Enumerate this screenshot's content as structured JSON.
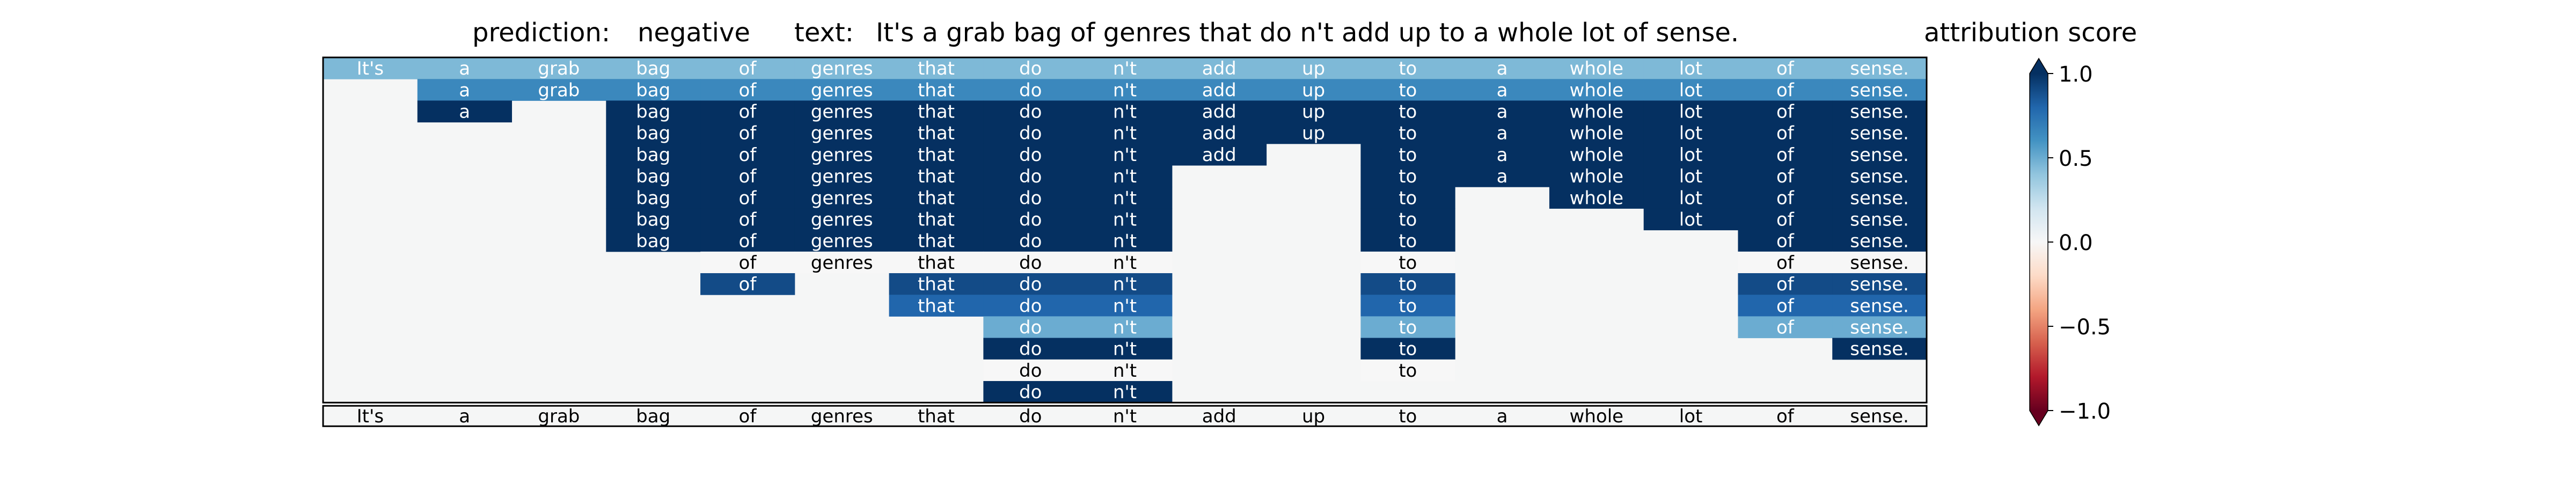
{
  "header": {
    "prediction_label": "prediction:",
    "prediction_value": "negative",
    "text_label": "text:",
    "text_value": "It's a grab bag of genres that do n't add up to a whole lot of sense."
  },
  "colorbar": {
    "title": "attribution score",
    "ticks": [
      "1.0",
      "0.5",
      "0.0",
      "−0.5",
      "−1.0"
    ],
    "tick_values": [
      1.0,
      0.5,
      0.0,
      -0.5,
      -1.0
    ],
    "range": [
      -1.0,
      1.0
    ],
    "colormap": "RdBu"
  },
  "chart_data": {
    "type": "heatmap",
    "tokens": [
      "It's",
      "a",
      "grab",
      "bag",
      "of",
      "genres",
      "that",
      "do",
      "n't",
      "add",
      "up",
      "to",
      "a",
      "whole",
      "lot",
      "of",
      "sense."
    ],
    "rows": [
      {
        "present": [
          0,
          1,
          2,
          3,
          4,
          5,
          6,
          7,
          8,
          9,
          10,
          11,
          12,
          13,
          14,
          15,
          16
        ],
        "scores": {
          "0": 0.45,
          "1": 0.45,
          "2": 0.45,
          "3": 0.45,
          "4": 0.45,
          "5": 0.45,
          "6": 0.45,
          "7": 0.45,
          "8": 0.45,
          "9": 0.45,
          "10": 0.45,
          "11": 0.45,
          "12": 0.45,
          "13": 0.45,
          "14": 0.45,
          "15": 0.45,
          "16": 0.45
        }
      },
      {
        "present": [
          1,
          2,
          3,
          4,
          5,
          6,
          7,
          8,
          9,
          10,
          11,
          12,
          13,
          14,
          15,
          16
        ],
        "scores": {
          "1": 0.65,
          "2": 0.65,
          "3": 0.65,
          "4": 0.65,
          "5": 0.65,
          "6": 0.65,
          "7": 0.65,
          "8": 0.65,
          "9": 0.65,
          "10": 0.65,
          "11": 0.65,
          "12": 0.65,
          "13": 0.65,
          "14": 0.65,
          "15": 0.65,
          "16": 0.65
        }
      },
      {
        "present": [
          1,
          3,
          4,
          5,
          6,
          7,
          8,
          9,
          10,
          11,
          12,
          13,
          14,
          15,
          16
        ],
        "scores": {
          "1": 1.0,
          "3": 1.0,
          "4": 1.0,
          "5": 1.0,
          "6": 1.0,
          "7": 1.0,
          "8": 1.0,
          "9": 1.0,
          "10": 1.0,
          "11": 1.0,
          "12": 1.0,
          "13": 1.0,
          "14": 1.0,
          "15": 1.0,
          "16": 1.0
        }
      },
      {
        "present": [
          3,
          4,
          5,
          6,
          7,
          8,
          9,
          10,
          11,
          12,
          13,
          14,
          15,
          16
        ],
        "scores": {
          "3": 1.0,
          "4": 1.0,
          "5": 1.0,
          "6": 1.0,
          "7": 1.0,
          "8": 1.0,
          "9": 1.0,
          "10": 1.0,
          "11": 1.0,
          "12": 1.0,
          "13": 1.0,
          "14": 1.0,
          "15": 1.0,
          "16": 1.0
        }
      },
      {
        "present": [
          3,
          4,
          5,
          6,
          7,
          8,
          9,
          11,
          12,
          13,
          14,
          15,
          16
        ],
        "scores": {
          "3": 1.0,
          "4": 1.0,
          "5": 1.0,
          "6": 1.0,
          "7": 1.0,
          "8": 1.0,
          "9": 1.0,
          "11": 1.0,
          "12": 1.0,
          "13": 1.0,
          "14": 1.0,
          "15": 1.0,
          "16": 1.0
        }
      },
      {
        "present": [
          3,
          4,
          5,
          6,
          7,
          8,
          11,
          12,
          13,
          14,
          15,
          16
        ],
        "scores": {
          "3": 1.0,
          "4": 1.0,
          "5": 1.0,
          "6": 1.0,
          "7": 1.0,
          "8": 1.0,
          "11": 1.0,
          "12": 1.0,
          "13": 1.0,
          "14": 1.0,
          "15": 1.0,
          "16": 1.0
        }
      },
      {
        "present": [
          3,
          4,
          5,
          6,
          7,
          8,
          11,
          13,
          14,
          15,
          16
        ],
        "scores": {
          "3": 1.0,
          "4": 1.0,
          "5": 1.0,
          "6": 1.0,
          "7": 1.0,
          "8": 1.0,
          "11": 1.0,
          "13": 1.0,
          "14": 1.0,
          "15": 1.0,
          "16": 1.0
        }
      },
      {
        "present": [
          3,
          4,
          5,
          6,
          7,
          8,
          11,
          14,
          15,
          16
        ],
        "scores": {
          "3": 1.0,
          "4": 1.0,
          "5": 1.0,
          "6": 1.0,
          "7": 1.0,
          "8": 1.0,
          "11": 1.0,
          "14": 1.0,
          "15": 1.0,
          "16": 1.0
        }
      },
      {
        "present": [
          3,
          4,
          5,
          6,
          7,
          8,
          11,
          15,
          16
        ],
        "scores": {
          "3": 1.0,
          "4": 1.0,
          "5": 1.0,
          "6": 1.0,
          "7": 1.0,
          "8": 1.0,
          "11": 1.0,
          "15": 1.0,
          "16": 1.0
        }
      },
      {
        "present": [
          4,
          5,
          6,
          7,
          8,
          11,
          15,
          16
        ],
        "scores": {
          "4": 0.0,
          "5": 0.0,
          "6": 0.0,
          "7": 0.0,
          "8": 0.0,
          "11": 0.0,
          "15": 0.0,
          "16": 0.0
        }
      },
      {
        "present": [
          4,
          6,
          7,
          8,
          11,
          15,
          16
        ],
        "scores": {
          "4": 0.9,
          "6": 0.9,
          "7": 0.9,
          "8": 0.9,
          "11": 0.9,
          "15": 0.9,
          "16": 0.9
        }
      },
      {
        "present": [
          6,
          7,
          8,
          11,
          15,
          16
        ],
        "scores": {
          "6": 0.8,
          "7": 0.8,
          "8": 0.8,
          "11": 0.8,
          "15": 0.8,
          "16": 0.8
        }
      },
      {
        "present": [
          7,
          8,
          11,
          15,
          16
        ],
        "scores": {
          "7": 0.5,
          "8": 0.5,
          "11": 0.5,
          "15": 0.5,
          "16": 0.5
        }
      },
      {
        "present": [
          7,
          8,
          11,
          16
        ],
        "scores": {
          "7": 1.0,
          "8": 1.0,
          "11": 1.0,
          "16": 1.0
        }
      },
      {
        "present": [
          7,
          8,
          11
        ],
        "scores": {
          "7": 0.0,
          "8": 0.0,
          "11": 0.0
        }
      },
      {
        "present": [
          7,
          8
        ],
        "scores": {
          "7": 1.0,
          "8": 1.0
        }
      }
    ],
    "empty_cell_color": "#f5f6f6"
  }
}
